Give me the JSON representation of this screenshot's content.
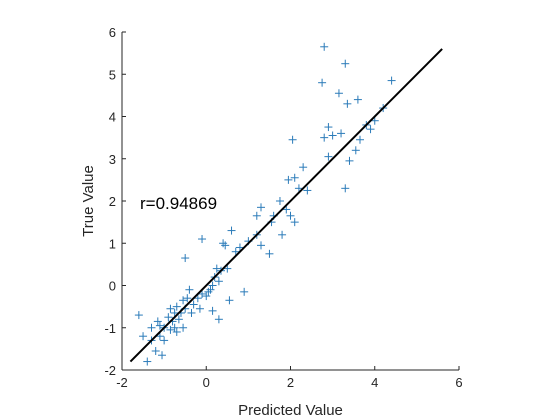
{
  "chart_data": {
    "type": "scatter",
    "title": "",
    "xlabel": "Predicted Value",
    "ylabel": "True Value",
    "xlim": [
      -2,
      6
    ],
    "ylim": [
      -2,
      6
    ],
    "xticks": [
      "-2",
      "0",
      "2",
      "4",
      "6"
    ],
    "yticks": [
      "-2",
      "-1",
      "0",
      "1",
      "2",
      "3",
      "4",
      "5",
      "6"
    ],
    "grid": false,
    "box": "left-bottom axes only",
    "annotation": "r=0.94869",
    "fit_line": {
      "x": [
        -1.8,
        5.6
      ],
      "y": [
        -1.8,
        5.6
      ],
      "color": "#000000"
    },
    "marker": "+",
    "marker_color": "#2b7bb9",
    "points": [
      [
        -1.6,
        -0.7
      ],
      [
        -1.5,
        -1.2
      ],
      [
        -1.4,
        -1.8
      ],
      [
        -1.3,
        -1.3
      ],
      [
        -1.3,
        -1.0
      ],
      [
        -1.2,
        -1.55
      ],
      [
        -1.15,
        -0.85
      ],
      [
        -1.1,
        -1.2
      ],
      [
        -1.1,
        -0.95
      ],
      [
        -1.05,
        -1.65
      ],
      [
        -1.0,
        -1.0
      ],
      [
        -1.0,
        -1.3
      ],
      [
        -0.9,
        -0.75
      ],
      [
        -0.85,
        -1.05
      ],
      [
        -0.85,
        -0.55
      ],
      [
        -0.8,
        -0.85
      ],
      [
        -0.75,
        -0.65
      ],
      [
        -0.75,
        -1.0
      ],
      [
        -0.7,
        -0.5
      ],
      [
        -0.7,
        -1.1
      ],
      [
        -0.65,
        -0.8
      ],
      [
        -0.6,
        -0.65
      ],
      [
        -0.55,
        -1.0
      ],
      [
        -0.55,
        -0.35
      ],
      [
        -0.5,
        -0.55
      ],
      [
        -0.5,
        0.65
      ],
      [
        -0.45,
        -0.3
      ],
      [
        -0.4,
        -0.1
      ],
      [
        -0.35,
        -0.65
      ],
      [
        -0.3,
        -0.45
      ],
      [
        -0.2,
        -0.3
      ],
      [
        -0.15,
        -0.55
      ],
      [
        -0.1,
        1.1
      ],
      [
        -0.1,
        -0.2
      ],
      [
        0.0,
        -0.25
      ],
      [
        0.05,
        -0.15
      ],
      [
        0.1,
        -0.1
      ],
      [
        0.15,
        0.0
      ],
      [
        0.15,
        -0.6
      ],
      [
        0.2,
        0.2
      ],
      [
        0.25,
        0.4
      ],
      [
        0.3,
        0.1
      ],
      [
        0.3,
        -0.8
      ],
      [
        0.35,
        0.35
      ],
      [
        0.4,
        1.0
      ],
      [
        0.45,
        0.95
      ],
      [
        0.5,
        0.4
      ],
      [
        0.55,
        -0.35
      ],
      [
        0.6,
        1.3
      ],
      [
        0.7,
        0.8
      ],
      [
        0.8,
        0.9
      ],
      [
        0.9,
        -0.15
      ],
      [
        1.0,
        1.05
      ],
      [
        1.2,
        1.2
      ],
      [
        1.2,
        1.65
      ],
      [
        1.3,
        1.85
      ],
      [
        1.3,
        0.95
      ],
      [
        1.5,
        0.75
      ],
      [
        1.55,
        1.5
      ],
      [
        1.6,
        1.65
      ],
      [
        1.75,
        2.0
      ],
      [
        1.8,
        1.2
      ],
      [
        1.9,
        1.8
      ],
      [
        1.95,
        2.5
      ],
      [
        2.0,
        1.65
      ],
      [
        2.05,
        3.45
      ],
      [
        2.1,
        1.5
      ],
      [
        2.1,
        2.55
      ],
      [
        2.2,
        2.3
      ],
      [
        2.3,
        2.8
      ],
      [
        2.4,
        2.25
      ],
      [
        2.8,
        5.65
      ],
      [
        2.75,
        4.8
      ],
      [
        2.8,
        3.5
      ],
      [
        2.9,
        3.75
      ],
      [
        2.9,
        3.05
      ],
      [
        3.0,
        3.55
      ],
      [
        3.15,
        4.55
      ],
      [
        3.2,
        3.6
      ],
      [
        3.3,
        5.25
      ],
      [
        3.3,
        2.3
      ],
      [
        3.35,
        4.3
      ],
      [
        3.4,
        2.95
      ],
      [
        3.55,
        3.2
      ],
      [
        3.6,
        4.4
      ],
      [
        3.65,
        3.45
      ],
      [
        3.8,
        3.8
      ],
      [
        3.9,
        3.7
      ],
      [
        4.0,
        3.9
      ],
      [
        4.2,
        4.2
      ],
      [
        4.4,
        4.85
      ]
    ]
  }
}
